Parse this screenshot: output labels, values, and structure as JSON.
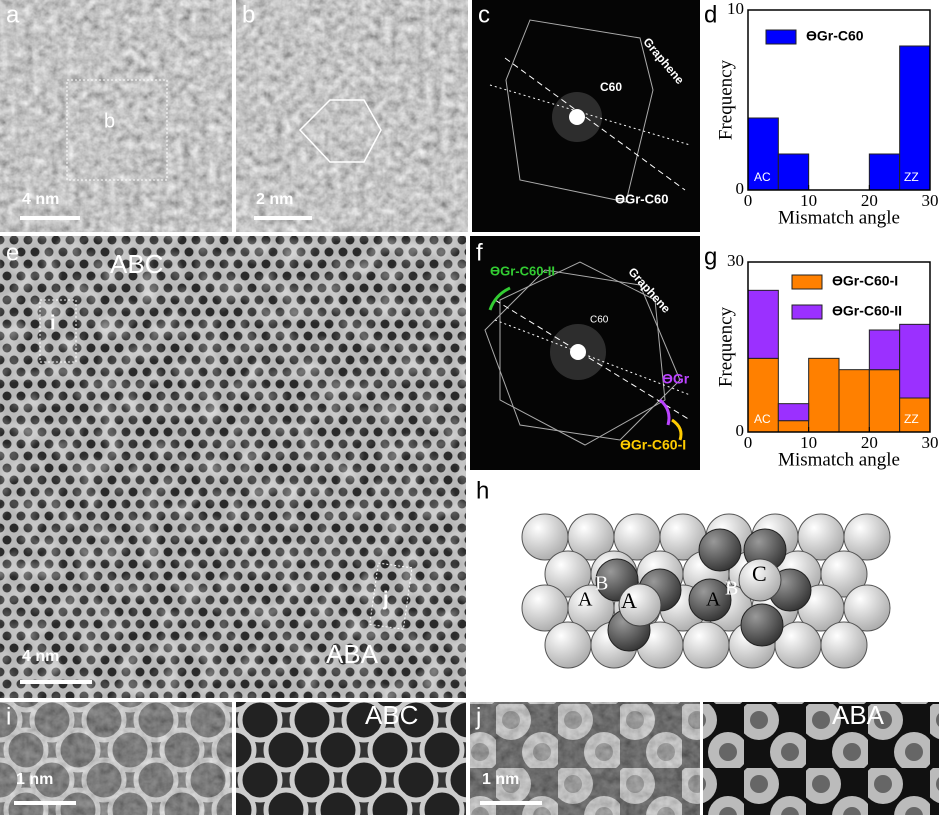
{
  "panel_labels": [
    "a",
    "b",
    "c",
    "d",
    "e",
    "f",
    "g",
    "h",
    "i",
    "j"
  ],
  "image_texts": {
    "a": [
      "b",
      "4 nm"
    ],
    "b": [
      "2 nm"
    ],
    "c": [
      "Graphene",
      "C60",
      "ϴGr-C60"
    ],
    "e": [
      "ABC",
      "i",
      "j",
      "4 nm",
      "ABA"
    ],
    "f": [
      "ϴGr-C60-II",
      "Graphene",
      "C60",
      "ϴGr",
      "ϴGr-C60-I"
    ],
    "h": [
      "A",
      "B",
      "A",
      "A",
      "B",
      "C"
    ],
    "i": [
      "1 nm",
      "ABC"
    ],
    "j": [
      "1 nm",
      "ABA"
    ]
  },
  "chart_data": [
    {
      "type": "histogram",
      "xlabel": "Mismatch angle",
      "ylabel": "Frequency",
      "bins": [
        0,
        5,
        10,
        15,
        20,
        25,
        30
      ],
      "series": [
        {
          "name": "ϴGr-C60",
          "color": "#0000ff",
          "values": [
            4,
            2,
            0,
            0,
            2,
            8
          ]
        }
      ],
      "xlim": [
        0,
        30
      ],
      "ylim": [
        0,
        10
      ],
      "xticks": [
        0,
        10,
        20,
        30
      ],
      "yticks": [
        0,
        10
      ],
      "annotations": [
        "AC",
        "ZZ"
      ],
      "stacked": false
    },
    {
      "type": "histogram",
      "xlabel": "Mismatch angle",
      "ylabel": "Frequency",
      "bins": [
        0,
        5,
        10,
        15,
        20,
        25,
        30
      ],
      "series": [
        {
          "name": "ϴGr-C60-I",
          "color": "#ff8000",
          "values": [
            13,
            2,
            13,
            11,
            11,
            6
          ]
        },
        {
          "name": "ϴGr-C60-II",
          "color": "#9b30ff",
          "values": [
            12,
            3,
            0,
            0,
            7,
            13
          ]
        }
      ],
      "xlim": [
        0,
        30
      ],
      "ylim": [
        0,
        30
      ],
      "xticks": [
        0,
        10,
        20,
        30
      ],
      "yticks": [
        0,
        30
      ],
      "annotations": [
        "AC",
        "ZZ"
      ],
      "stacked": true
    }
  ]
}
